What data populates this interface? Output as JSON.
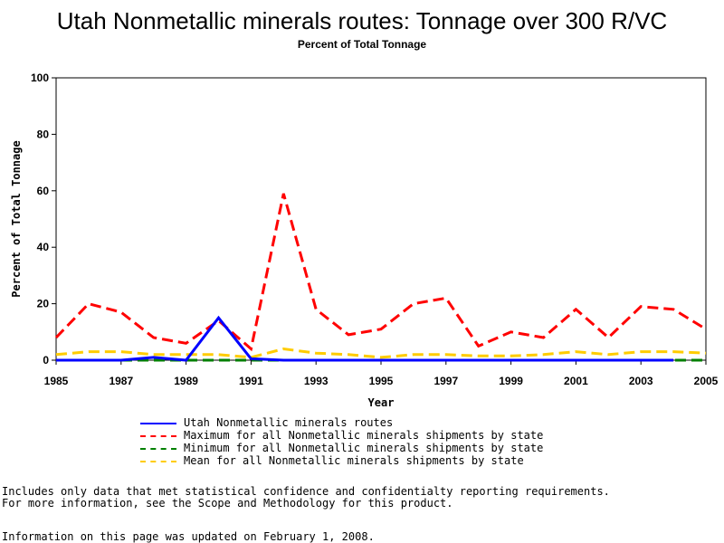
{
  "chart_data": {
    "type": "line",
    "title": "Utah Nonmetallic minerals routes: Tonnage over 300 R/VC",
    "subtitle": "Percent of Total Tonnage",
    "xlabel": "Year",
    "ylabel": "Percent of Total Tonnage",
    "xlim": [
      1985,
      2005
    ],
    "ylim": [
      0,
      100
    ],
    "xticks": [
      1985,
      1987,
      1989,
      1991,
      1993,
      1995,
      1997,
      1999,
      2001,
      2003,
      2005
    ],
    "yticks": [
      0,
      20,
      40,
      60,
      80,
      100
    ],
    "grid": false,
    "legend_position": "bottom",
    "series": [
      {
        "name": "Utah Nonmetallic minerals routes",
        "color": "#0000ff",
        "style": "solid",
        "points": [
          [
            1985,
            0
          ],
          [
            1986,
            0
          ],
          [
            1987,
            0
          ],
          [
            1988,
            1
          ],
          [
            1989,
            0
          ],
          [
            1990,
            15
          ],
          [
            1991,
            0.5
          ],
          [
            1992,
            0
          ],
          [
            1993,
            0
          ],
          [
            1994,
            0
          ],
          [
            1995,
            0
          ],
          [
            1998,
            0
          ],
          [
            1999,
            0
          ],
          [
            2002,
            0
          ],
          [
            2003,
            0
          ],
          [
            2004,
            0
          ]
        ]
      },
      {
        "name": "Maximum for all Nonmetallic minerals shipments by state",
        "color": "#ff0000",
        "style": "dashed",
        "points": [
          [
            1985,
            8
          ],
          [
            1986,
            20
          ],
          [
            1987,
            17
          ],
          [
            1988,
            8
          ],
          [
            1989,
            6
          ],
          [
            1990,
            14
          ],
          [
            1991,
            4
          ],
          [
            1992,
            59
          ],
          [
            1993,
            18
          ],
          [
            1994,
            9
          ],
          [
            1995,
            11
          ],
          [
            1996,
            20
          ],
          [
            1997,
            22
          ],
          [
            1998,
            5
          ],
          [
            1999,
            10
          ],
          [
            2000,
            8
          ],
          [
            2001,
            18
          ],
          [
            2002,
            8
          ],
          [
            2003,
            19
          ],
          [
            2004,
            18
          ],
          [
            2005,
            11
          ]
        ]
      },
      {
        "name": "Minimum for all Nonmetallic minerals shipments by state",
        "color": "#008000",
        "style": "dashed",
        "points": [
          [
            1985,
            0
          ],
          [
            1986,
            0
          ],
          [
            1987,
            0
          ],
          [
            1988,
            0
          ],
          [
            1989,
            0
          ],
          [
            1990,
            0
          ],
          [
            1991,
            0
          ],
          [
            1992,
            0
          ],
          [
            1993,
            0
          ],
          [
            1994,
            0
          ],
          [
            1995,
            0
          ],
          [
            1996,
            0
          ],
          [
            1997,
            0
          ],
          [
            1998,
            0
          ],
          [
            1999,
            0
          ],
          [
            2000,
            0
          ],
          [
            2001,
            0
          ],
          [
            2002,
            0
          ],
          [
            2003,
            0
          ],
          [
            2004,
            0
          ],
          [
            2005,
            0
          ]
        ]
      },
      {
        "name": "Mean for all Nonmetallic minerals shipments by state",
        "color": "#ffcc00",
        "style": "dashed",
        "points": [
          [
            1985,
            2
          ],
          [
            1986,
            3
          ],
          [
            1987,
            3
          ],
          [
            1988,
            2
          ],
          [
            1989,
            2
          ],
          [
            1990,
            2
          ],
          [
            1991,
            1
          ],
          [
            1992,
            4
          ],
          [
            1993,
            2.5
          ],
          [
            1994,
            2
          ],
          [
            1995,
            1
          ],
          [
            1996,
            2
          ],
          [
            1997,
            2
          ],
          [
            1998,
            1.5
          ],
          [
            1999,
            1.5
          ],
          [
            2000,
            2
          ],
          [
            2001,
            3
          ],
          [
            2002,
            2
          ],
          [
            2003,
            3
          ],
          [
            2004,
            3
          ],
          [
            2005,
            2.5
          ]
        ]
      }
    ]
  },
  "notes": {
    "line1": "Includes only data that met statistical confidence and confidentialty reporting requirements.",
    "line2": "For more information, see the Scope and Methodology for this product.",
    "line3": "Information on this page was updated on February 1, 2008."
  }
}
